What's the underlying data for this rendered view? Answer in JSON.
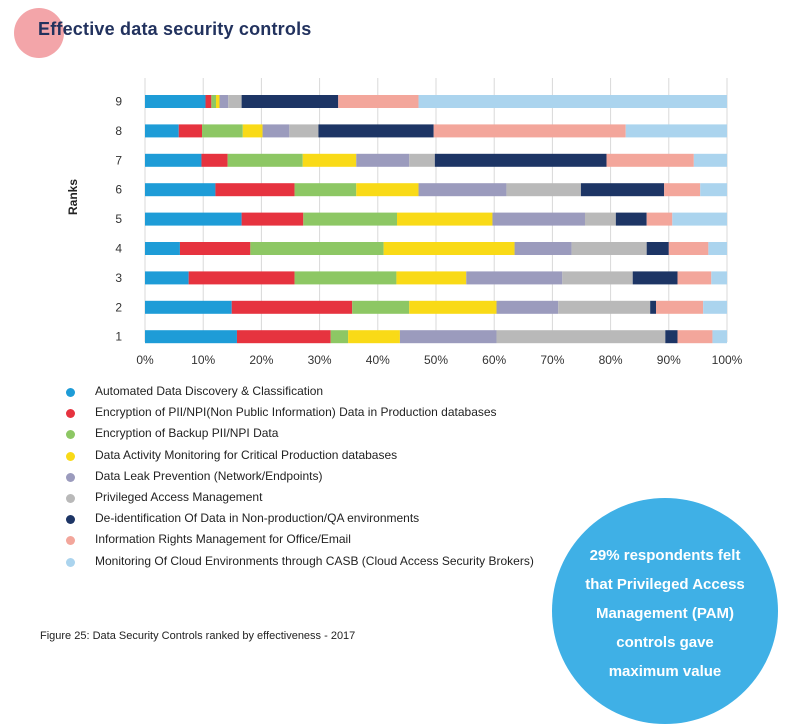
{
  "header": {
    "title": "Effective data security controls"
  },
  "caption": "Figure 25: Data Security Controls ranked by effectiveness - 2017",
  "callout": {
    "text": "29% respondents felt\nthat Privileged Access\nManagement (PAM)\ncontrols gave\nmaximum value"
  },
  "colors": {
    "title": "#22325e",
    "title_dot": "#f3a5a9",
    "callout_bg": "#3fb0e6",
    "series": [
      "#1e9cd7",
      "#e6333f",
      "#8dc764",
      "#f9da17",
      "#9b9bbd",
      "#b9b9b9",
      "#1d3565",
      "#f3a69b",
      "#abd4ee"
    ]
  },
  "chart_data": {
    "type": "bar",
    "orientation": "horizontal",
    "stacked": true,
    "ylabel": "Ranks",
    "xlabel": "",
    "xlim": [
      0,
      100
    ],
    "x_ticks": [
      "0%",
      "10%",
      "20%",
      "30%",
      "40%",
      "50%",
      "60%",
      "70%",
      "80%",
      "90%",
      "100%"
    ],
    "grid": true,
    "categories": [
      "9",
      "8",
      "7",
      "6",
      "5",
      "4",
      "3",
      "2",
      "1"
    ],
    "series": [
      {
        "name": "Automated Data Discovery & Classification",
        "values": [
          10.4,
          5.8,
          9.7,
          12.1,
          16.6,
          6.0,
          7.5,
          14.9,
          15.8
        ]
      },
      {
        "name": "Encryption of PII/NPI(Non Public Information) Data in Production databases",
        "values": [
          1.0,
          4.0,
          4.5,
          13.6,
          10.6,
          12.1,
          18.2,
          20.7,
          16.1
        ]
      },
      {
        "name": "Encryption of Backup PII/NPI Data",
        "values": [
          0.8,
          7.0,
          12.9,
          10.6,
          16.1,
          22.9,
          17.5,
          9.8,
          3.0
        ]
      },
      {
        "name": "Data Activity Monitoring for Critical Production databases",
        "values": [
          0.6,
          3.4,
          9.2,
          10.7,
          16.4,
          22.5,
          12.0,
          15.0,
          8.9
        ]
      },
      {
        "name": "Data Leak Prevention (Network/Endpoints)",
        "values": [
          1.5,
          4.6,
          9.1,
          15.1,
          15.9,
          9.8,
          16.5,
          10.6,
          16.6
        ]
      },
      {
        "name": "Privileged Access Management",
        "values": [
          2.3,
          5.0,
          4.4,
          12.8,
          5.3,
          12.9,
          12.1,
          15.8,
          29.0
        ]
      },
      {
        "name": "De-identification Of Data in Non-production/QA environments",
        "values": [
          16.6,
          19.8,
          29.5,
          14.3,
          5.3,
          3.8,
          7.7,
          1.0,
          2.1
        ]
      },
      {
        "name": "Information Rights Management for Office/Email",
        "values": [
          13.8,
          33.0,
          15.0,
          6.2,
          4.4,
          6.8,
          5.8,
          8.1,
          6.0
        ]
      },
      {
        "name": "Monitoring Of Cloud Environments through CASB (Cloud Access Security Brokers)",
        "values": [
          53.0,
          17.4,
          5.7,
          4.6,
          9.4,
          3.2,
          2.7,
          4.1,
          2.5
        ]
      }
    ]
  }
}
